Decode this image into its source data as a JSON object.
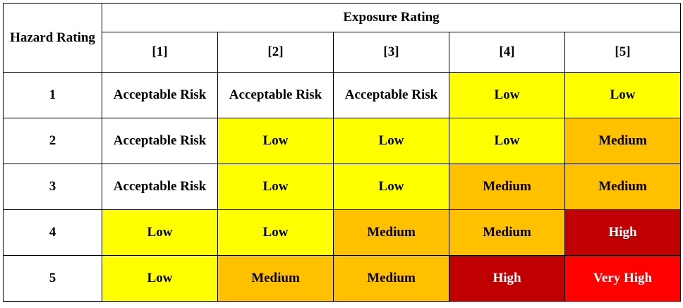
{
  "header": {
    "hazard_label": "Hazard Rating",
    "exposure_label": "Exposure Rating",
    "exposure_levels": [
      "[1]",
      "[2]",
      "[3]",
      "[4]",
      "[5]"
    ]
  },
  "levels": {
    "none": {
      "color": "#ffffff",
      "text_color": "#000000"
    },
    "low": {
      "color": "#ffff00",
      "text_color": "#000000"
    },
    "medium": {
      "color": "#ffc000",
      "text_color": "#000000"
    },
    "high": {
      "color": "#c00000",
      "text_color": "#ffffff"
    },
    "veryhigh": {
      "color": "#ff0000",
      "text_color": "#ffffff"
    }
  },
  "rows": [
    {
      "hazard": "1",
      "cells": [
        {
          "text": "Acceptable Risk",
          "level": "none"
        },
        {
          "text": "Acceptable Risk",
          "level": "none"
        },
        {
          "text": "Acceptable Risk",
          "level": "none"
        },
        {
          "text": "Low",
          "level": "low"
        },
        {
          "text": "Low",
          "level": "low"
        }
      ]
    },
    {
      "hazard": "2",
      "cells": [
        {
          "text": "Acceptable Risk",
          "level": "none"
        },
        {
          "text": "Low",
          "level": "low"
        },
        {
          "text": "Low",
          "level": "low"
        },
        {
          "text": "Low",
          "level": "low"
        },
        {
          "text": "Medium",
          "level": "medium"
        }
      ]
    },
    {
      "hazard": "3",
      "cells": [
        {
          "text": "Acceptable Risk",
          "level": "none"
        },
        {
          "text": "Low",
          "level": "low"
        },
        {
          "text": "Low",
          "level": "low"
        },
        {
          "text": "Medium",
          "level": "medium"
        },
        {
          "text": "Medium",
          "level": "medium"
        }
      ]
    },
    {
      "hazard": "4",
      "cells": [
        {
          "text": "Low",
          "level": "low"
        },
        {
          "text": "Low",
          "level": "low"
        },
        {
          "text": "Medium",
          "level": "medium"
        },
        {
          "text": "Medium",
          "level": "medium"
        },
        {
          "text": "High",
          "level": "high"
        }
      ]
    },
    {
      "hazard": "5",
      "cells": [
        {
          "text": "Low",
          "level": "low"
        },
        {
          "text": "Medium",
          "level": "medium"
        },
        {
          "text": "Medium",
          "level": "medium"
        },
        {
          "text": "High",
          "level": "high"
        },
        {
          "text": "Very High",
          "level": "veryhigh"
        }
      ]
    }
  ]
}
